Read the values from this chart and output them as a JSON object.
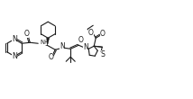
{
  "line_color": "#1a1a1a",
  "line_width": 0.8,
  "font_size": 5.2,
  "fig_width": 2.14,
  "fig_height": 1.1,
  "dpi": 100,
  "xlim": [
    0,
    214
  ],
  "ylim": [
    0,
    110
  ]
}
